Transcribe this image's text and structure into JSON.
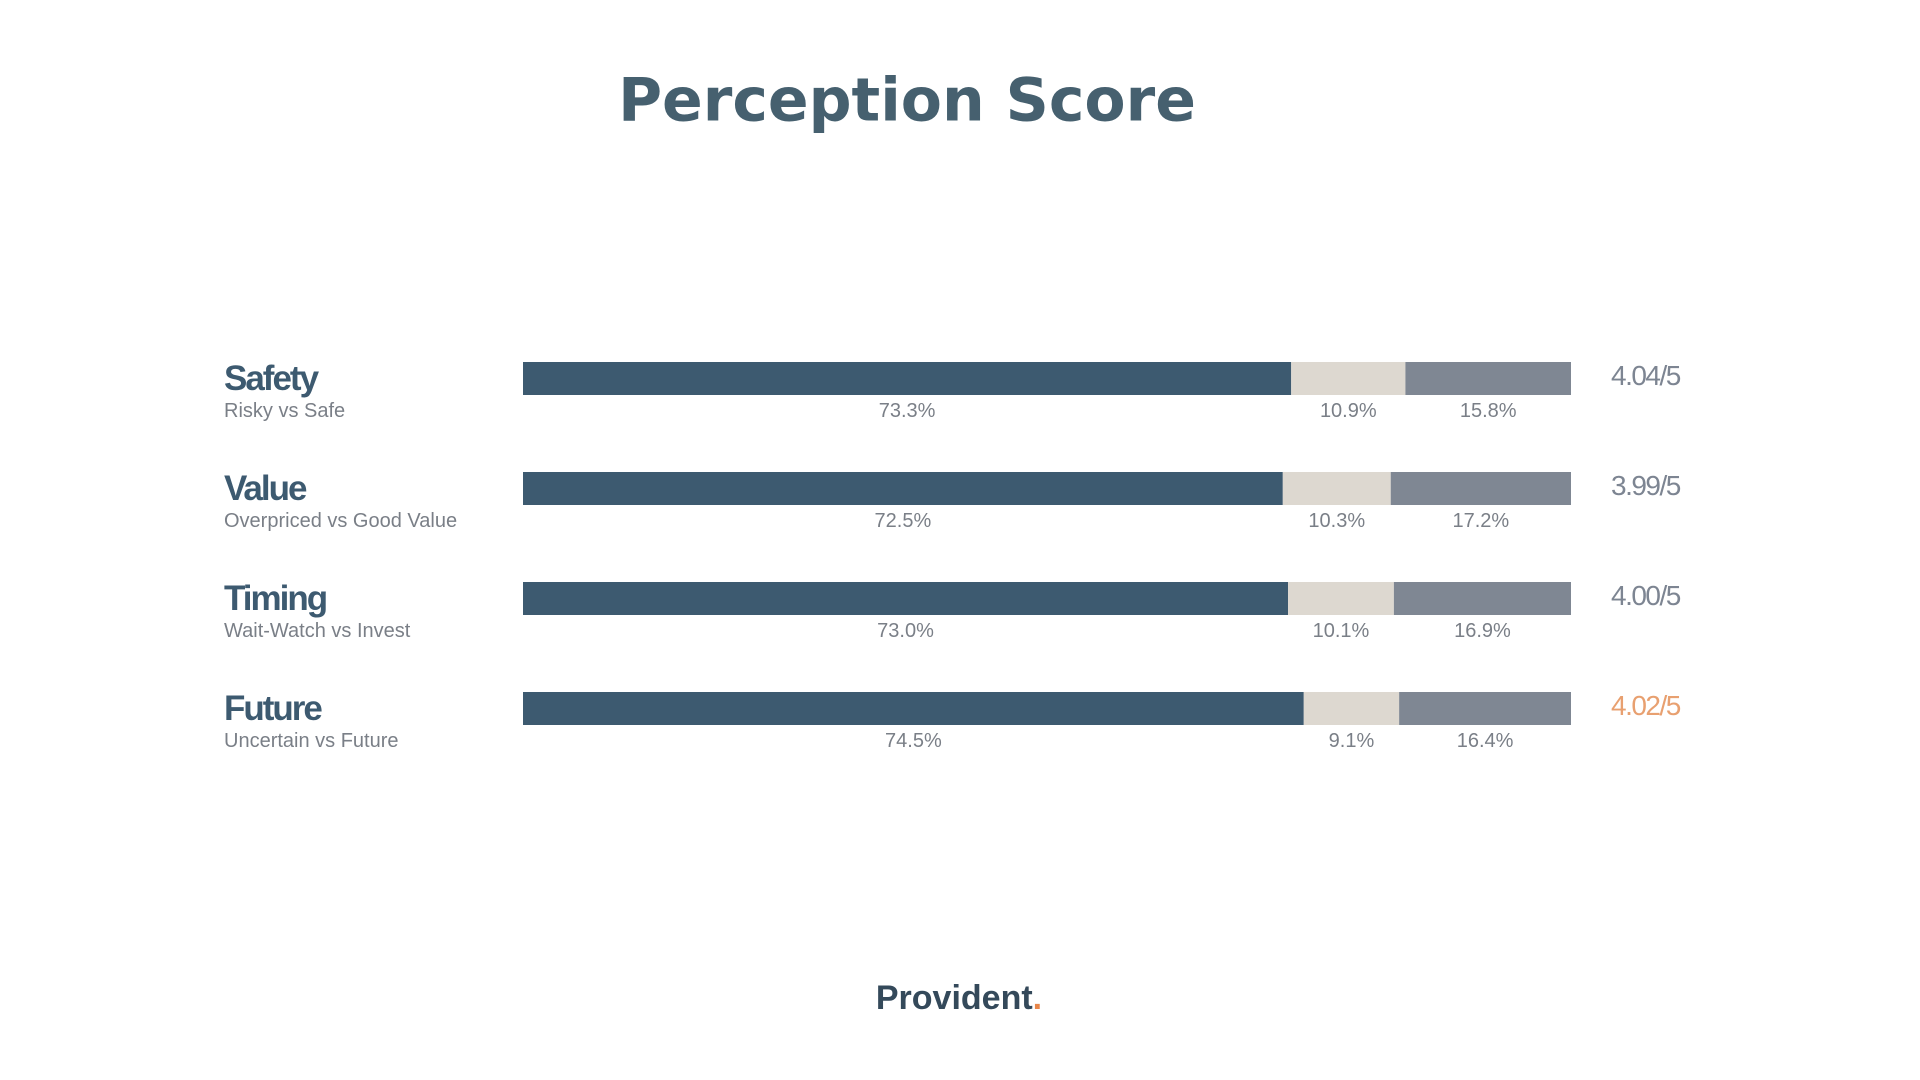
{
  "chart_data": {
    "type": "bar",
    "title": "Perception Score",
    "categories": [
      "Safety",
      "Value",
      "Timing",
      "Future"
    ],
    "subtitles": [
      "Risky vs Safe",
      "Overpriced vs Good Value",
      "Wait-Watch vs Invest",
      "Uncertain vs Future"
    ],
    "series": [
      {
        "color": "#3d5a70",
        "values": [
          73.3,
          72.5,
          73.0,
          74.5
        ],
        "value_labels": [
          "73.3%",
          "72.5%",
          "73.0%",
          "74.5%"
        ]
      },
      {
        "color": "#ddd8d0",
        "values": [
          10.9,
          10.3,
          10.1,
          9.1
        ],
        "value_labels": [
          "10.9%",
          "10.3%",
          "10.1%",
          "9.1%"
        ]
      },
      {
        "color": "#7f8793",
        "values": [
          15.8,
          17.2,
          16.9,
          16.4
        ],
        "value_labels": [
          "15.8%",
          "17.2%",
          "16.9%",
          "16.4%"
        ]
      }
    ],
    "scores": [
      {
        "text": "4.04/5",
        "color": "#7d8592"
      },
      {
        "text": "3.99/5",
        "color": "#7d8592"
      },
      {
        "text": "4.00/5",
        "color": "#7d8592"
      },
      {
        "text": "4.02/5",
        "color": "#e8a070"
      }
    ]
  },
  "footer": {
    "brand": "Provident",
    "mark": ".",
    "mark_color": "#e8864a"
  }
}
